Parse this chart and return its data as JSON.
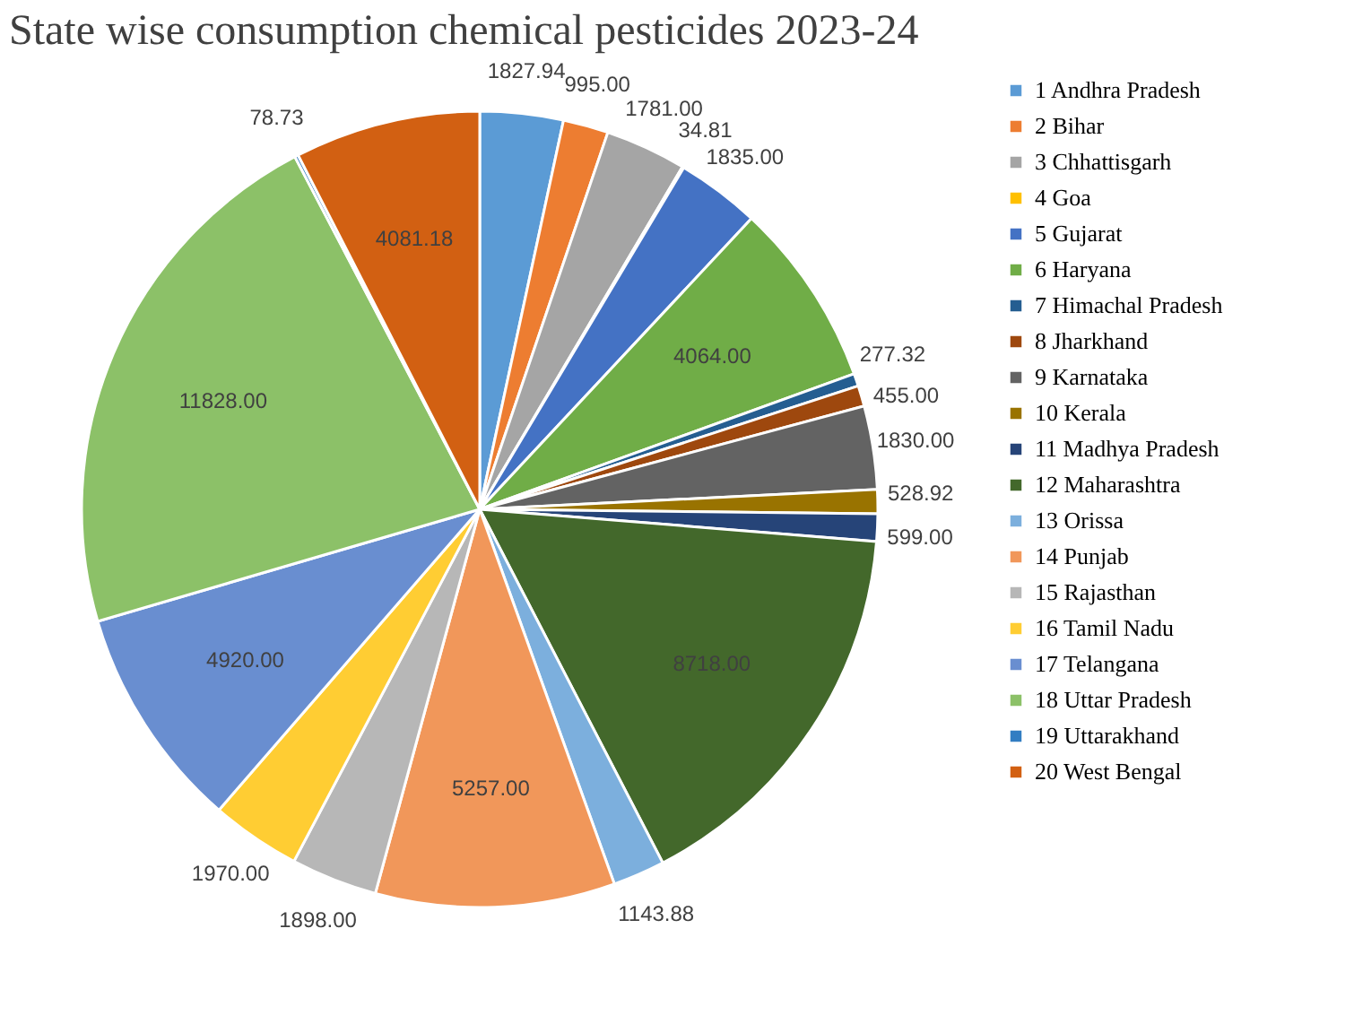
{
  "chart_data": {
    "type": "pie",
    "title": "State wise consumption chemical pesticides 2023-24",
    "categories": [
      "1 Andhra Pradesh",
      "2 Bihar",
      "3 Chhattisgarh",
      "4 Goa",
      "5 Gujarat",
      "6 Haryana",
      "7 Himachal Pradesh",
      "8 Jharkhand",
      "9 Karnataka",
      "10 Kerala",
      "11 Madhya Pradesh",
      "12 Maharashtra",
      "13 Orissa",
      "14 Punjab",
      "15 Rajasthan",
      "16 Tamil Nadu",
      "17 Telangana",
      "18 Uttar Pradesh",
      "19 Uttarakhand",
      "20 West Bengal"
    ],
    "values": [
      1827.94,
      995.0,
      1781.0,
      34.81,
      1835.0,
      4064.0,
      277.32,
      455.0,
      1830.0,
      528.92,
      599.0,
      8718.0,
      1143.88,
      5257.0,
      1898.0,
      1970.0,
      4920.0,
      11828.0,
      78.73,
      4081.18
    ],
    "value_labels": [
      "1827.94",
      "995.00",
      "1781.00",
      "34.81",
      "1835.00",
      "4064.00",
      "277.32",
      "455.00",
      "1830.00",
      "528.92",
      "599.00",
      "8718.00",
      "1143.88",
      "5257.00",
      "1898.00",
      "1970.00",
      "4920.00",
      "11828.00",
      "78.73",
      "4081.18"
    ],
    "colors": [
      "#5b9bd5",
      "#ed7d31",
      "#a5a5a5",
      "#ffc000",
      "#4472c4",
      "#70ad47",
      "#255e91",
      "#9e480e",
      "#636363",
      "#997300",
      "#264478",
      "#43682b",
      "#7cafdd",
      "#f1975a",
      "#b7b7b7",
      "#ffcd33",
      "#698ed0",
      "#8cc168",
      "#327dc2",
      "#d26012"
    ],
    "legend": "right"
  }
}
